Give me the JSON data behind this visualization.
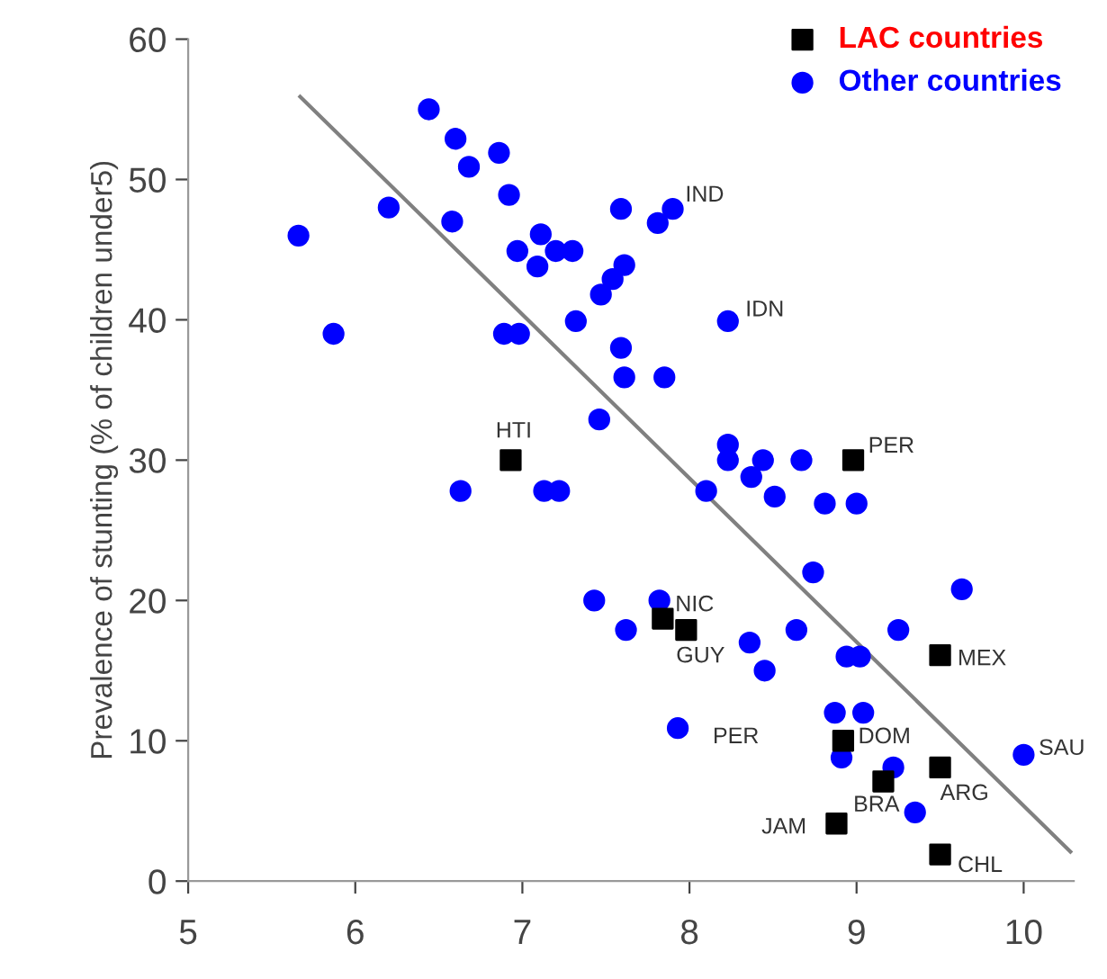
{
  "chart_data": {
    "type": "scatter",
    "ylabel": "Prevalence of stunting (% of children under5)",
    "xlim": [
      5,
      10.3
    ],
    "ylim": [
      0,
      60
    ],
    "xticks": [
      5,
      6,
      7,
      8,
      9,
      10
    ],
    "yticks": [
      0,
      10,
      20,
      30,
      40,
      50,
      60
    ],
    "grid": false,
    "legend": "top right",
    "series": [
      {
        "name": "LAC countries",
        "color": "#000000",
        "marker": "square",
        "x": [
          6.93,
          8.98,
          7.84,
          7.98,
          9.5,
          8.92,
          9.5,
          9.16,
          8.88,
          9.5
        ],
        "values": [
          30,
          30,
          18.7,
          17.9,
          16.1,
          10,
          8.1,
          7.1,
          4.1,
          1.9
        ]
      },
      {
        "name": "Other countries",
        "color": "#0000ff",
        "marker": "circle",
        "x": [
          5.66,
          5.87,
          6.2,
          6.44,
          6.6,
          6.58,
          6.68,
          6.86,
          6.92,
          6.97,
          7.09,
          7.11,
          7.2,
          7.3,
          6.89,
          6.98,
          7.32,
          6.63,
          7.13,
          7.22,
          7.46,
          7.47,
          7.54,
          7.59,
          7.61,
          7.59,
          7.61,
          7.9,
          7.81,
          8.23,
          7.85,
          8.23,
          8.23,
          8.44,
          8.37,
          8.67,
          8.51,
          8.81,
          9.0,
          8.1,
          8.74,
          9.63,
          7.43,
          7.82,
          7.62,
          8.64,
          9.25,
          8.36,
          8.45,
          8.94,
          9.02,
          7.93,
          8.87,
          9.04,
          8.91,
          9.22,
          9.35,
          10.0
        ],
        "values": [
          46,
          39,
          48,
          55,
          52.9,
          47,
          50.9,
          51.9,
          48.9,
          44.9,
          43.8,
          46.1,
          44.9,
          44.9,
          39,
          39,
          39.9,
          27.8,
          27.8,
          27.8,
          32.9,
          41.8,
          42.9,
          47.9,
          43.9,
          38,
          35.9,
          47.9,
          46.9,
          39.9,
          35.9,
          31.1,
          30,
          30,
          28.8,
          30,
          27.4,
          26.9,
          26.9,
          27.8,
          22,
          20.8,
          20,
          20,
          17.9,
          17.9,
          17.9,
          17,
          15,
          16,
          16,
          10.9,
          12,
          12,
          8.8,
          8.1,
          4.9,
          9
        ]
      },
      {
        "type": "line",
        "color": "#808080",
        "marker": "none",
        "x": [
          5.67,
          10.28
        ],
        "values": [
          55.9,
          2.1
        ]
      }
    ],
    "annotations": [
      {
        "text": "HTI",
        "x": 6.93,
        "y": 30
      },
      {
        "text": "PER",
        "x": 8.98,
        "y": 30
      },
      {
        "text": "NIC",
        "x": 7.84,
        "y": 18.7
      },
      {
        "text": "GUY",
        "x": 7.98,
        "y": 17.9
      },
      {
        "text": "MEX",
        "x": 9.5,
        "y": 16.1
      },
      {
        "text": "DOM",
        "x": 8.92,
        "y": 10
      },
      {
        "text": "ARG",
        "x": 9.5,
        "y": 8.1
      },
      {
        "text": "BRA",
        "x": 9.16,
        "y": 7.1
      },
      {
        "text": "JAM",
        "x": 8.88,
        "y": 4.1
      },
      {
        "text": "CHL",
        "x": 9.5,
        "y": 1.9
      },
      {
        "text": "IND",
        "x": 7.9,
        "y": 47.9
      },
      {
        "text": "IDN",
        "x": 8.23,
        "y": 39.9
      },
      {
        "text": "PER",
        "x": 7.93,
        "y": 10.9
      },
      {
        "text": "SAU",
        "x": 10.0,
        "y": 9.0
      }
    ]
  }
}
